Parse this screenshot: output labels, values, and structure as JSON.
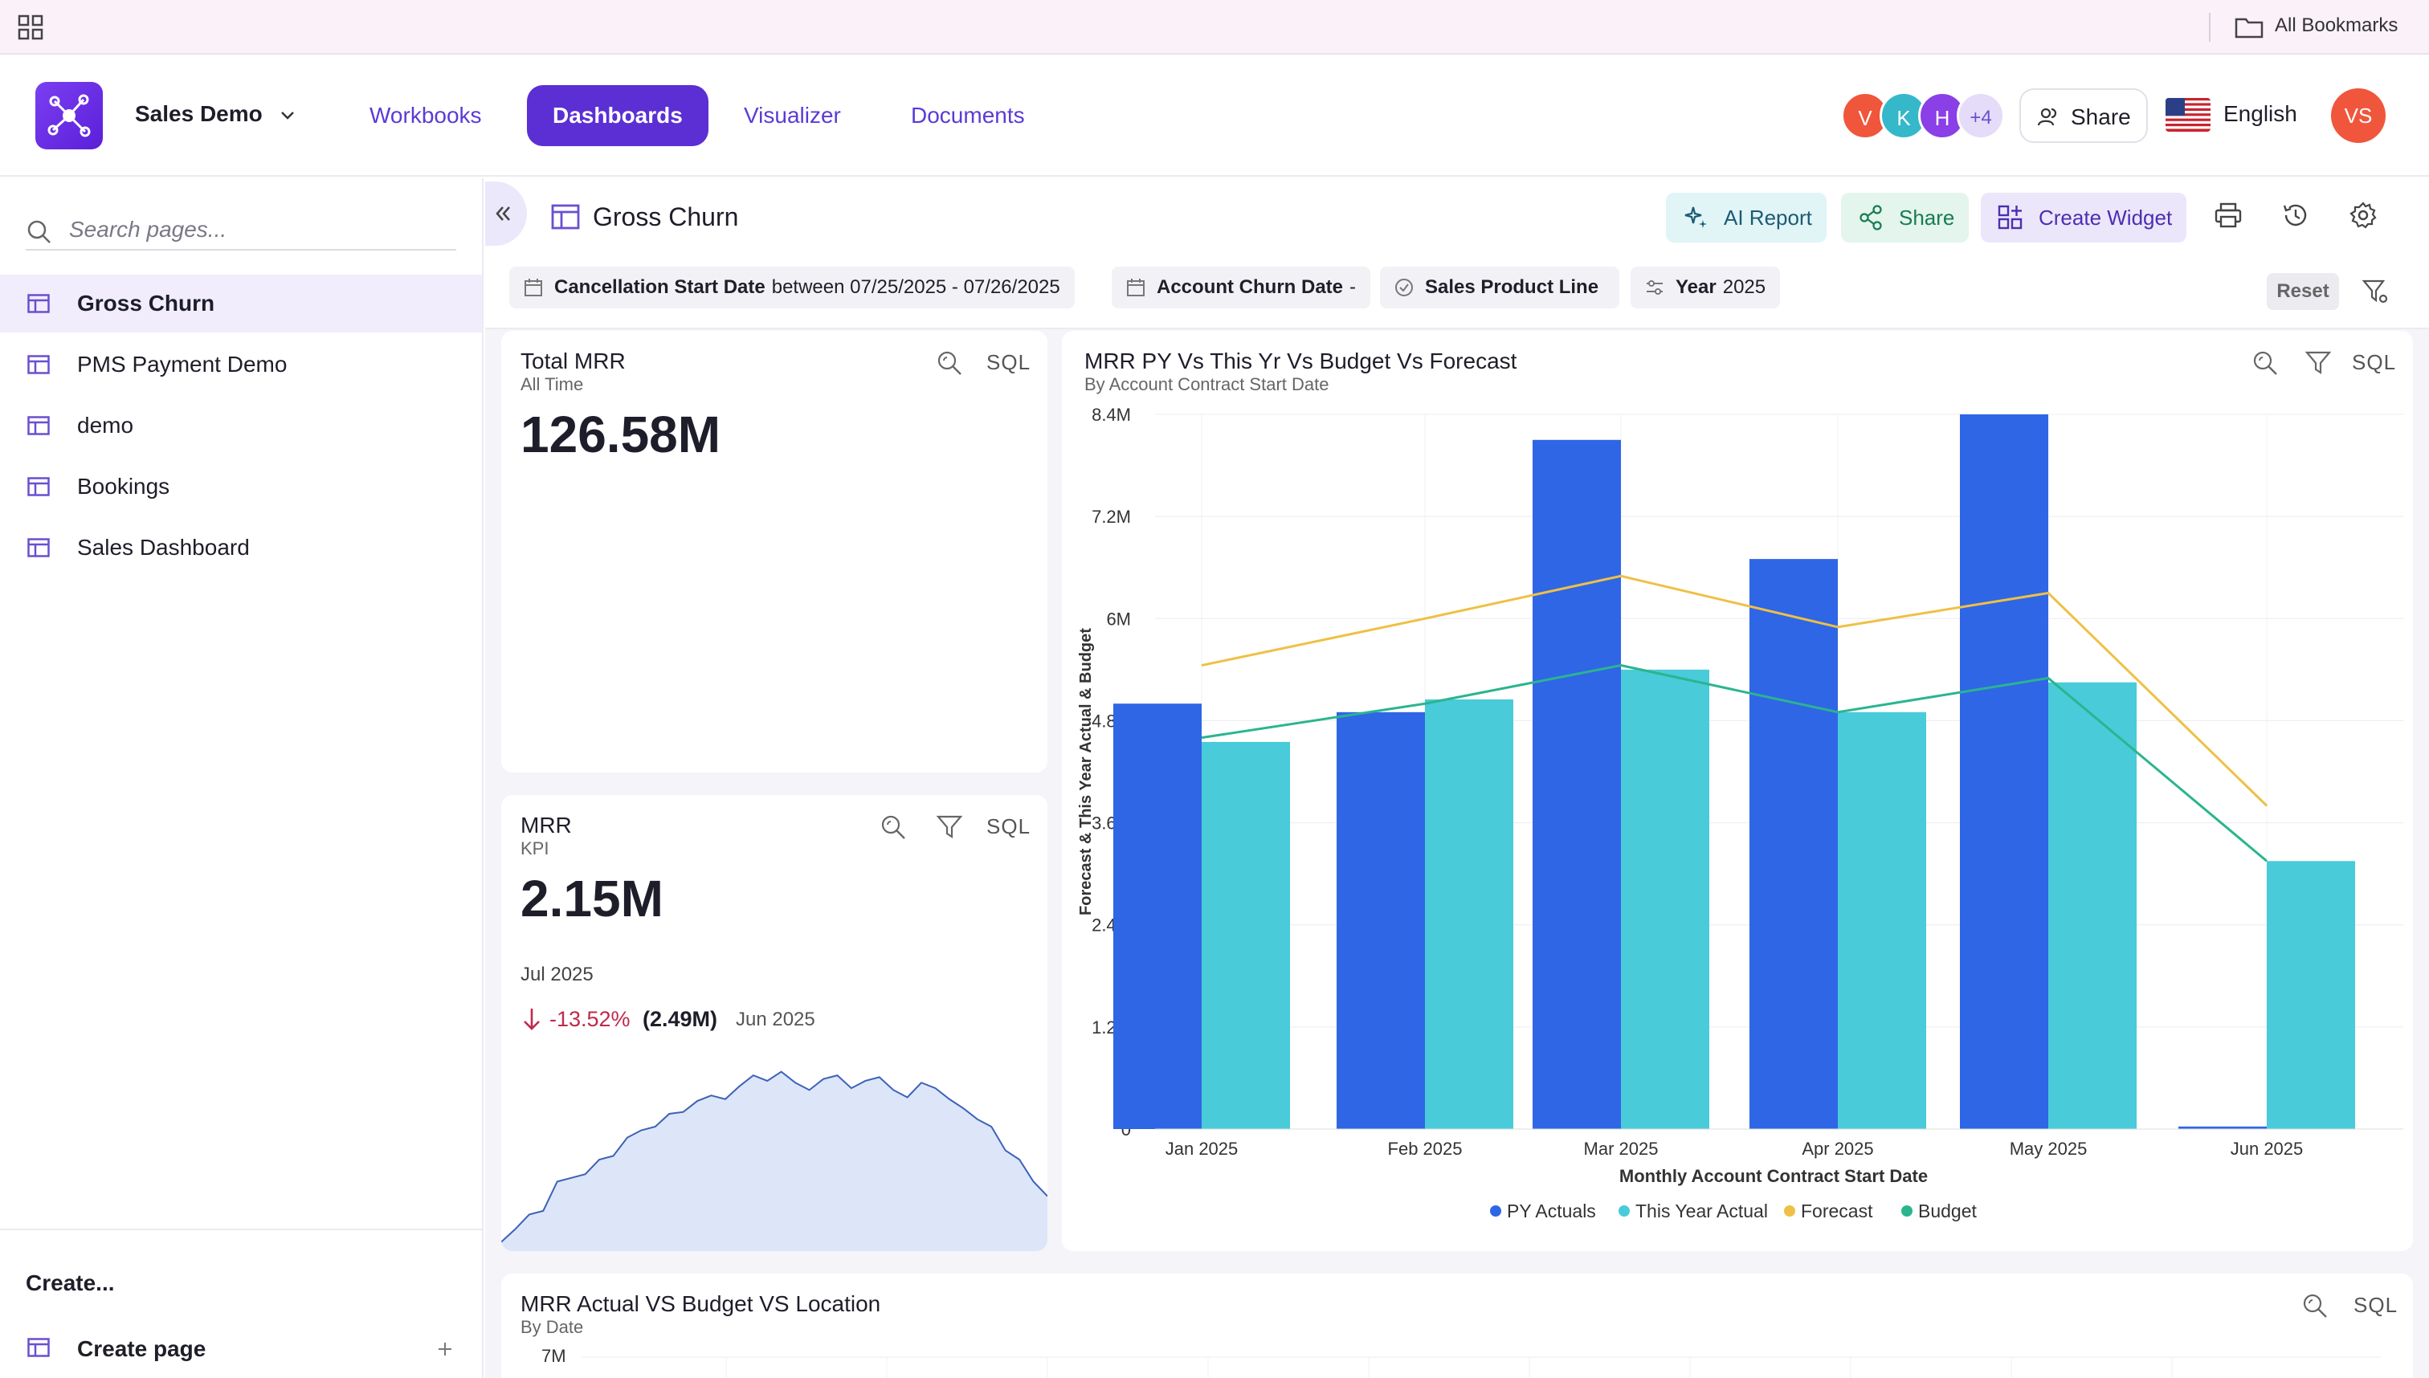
{
  "bookmarks": {
    "label": "All Bookmarks"
  },
  "header": {
    "app_name": "Sales Demo",
    "nav": [
      {
        "label": "Workbooks"
      },
      {
        "label": "Dashboards"
      },
      {
        "label": "Visualizer"
      },
      {
        "label": "Documents"
      }
    ],
    "collaborators": [
      "V",
      "K",
      "H",
      "+4"
    ],
    "share_label": "Share",
    "language": "English",
    "user_initials": "VS"
  },
  "sidebar": {
    "search_placeholder": "Search pages...",
    "items": [
      {
        "label": "Gross Churn"
      },
      {
        "label": "PMS Payment Demo"
      },
      {
        "label": "demo"
      },
      {
        "label": "Bookings"
      },
      {
        "label": "Sales Dashboard"
      }
    ],
    "create_label": "Create...",
    "create_page_label": "Create page"
  },
  "page": {
    "title": "Gross Churn",
    "ai_report": "AI Report",
    "share": "Share",
    "create_widget": "Create Widget"
  },
  "filters": [
    {
      "name": "Cancellation Start Date",
      "value": "between 07/25/2025 - 07/26/2025"
    },
    {
      "name": "Account Churn Date",
      "value": "-"
    },
    {
      "name": "Sales Product Line",
      "value": ""
    },
    {
      "name": "Year",
      "value": "2025"
    }
  ],
  "reset_label": "Reset",
  "widgets": {
    "total_mrr": {
      "title": "Total MRR",
      "subtitle": "All Time",
      "value": "126.58M",
      "sql": "SQL"
    },
    "mrr": {
      "title": "MRR",
      "subtitle": "KPI",
      "value": "2.15M",
      "period": "Jul 2025",
      "change": "-13.52%",
      "prev_value": "(2.49M)",
      "prev_period": "Jun 2025",
      "sql": "SQL",
      "sparkline": [
        0.05,
        0.12,
        0.2,
        0.22,
        0.38,
        0.4,
        0.42,
        0.5,
        0.52,
        0.62,
        0.66,
        0.68,
        0.75,
        0.76,
        0.82,
        0.85,
        0.83,
        0.9,
        0.96,
        0.93,
        0.98,
        0.92,
        0.88,
        0.94,
        0.96,
        0.89,
        0.93,
        0.95,
        0.88,
        0.84,
        0.92,
        0.89,
        0.83,
        0.78,
        0.72,
        0.68,
        0.55,
        0.5,
        0.38,
        0.3
      ]
    },
    "mrr_chart": {
      "title": "MRR PY Vs This Yr Vs Budget Vs Forecast",
      "subtitle": "By Account Contract Start Date",
      "sql": "SQL"
    },
    "mrr_location": {
      "title": "MRR Actual VS Budget VS Location",
      "subtitle": "By Date",
      "y_top": "7M",
      "sql": "SQL"
    }
  },
  "chart_data": {
    "type": "bar",
    "title": "MRR PY Vs This Yr Vs Budget Vs Forecast",
    "subtitle": "By Account Contract Start Date",
    "xlabel": "Monthly Account Contract Start Date",
    "ylabel": "Forecast & This Year Actual & Budget",
    "categories": [
      "Jan 2025",
      "Feb 2025",
      "Mar 2025",
      "Apr 2025",
      "May 2025",
      "Jun 2025"
    ],
    "ylim": [
      0,
      8.4
    ],
    "yticks": [
      "0",
      "1.2M",
      "2.4M",
      "3.6M",
      "4.8M",
      "6M",
      "7.2M",
      "8.4M"
    ],
    "series": [
      {
        "name": "PY Actuals",
        "kind": "bar",
        "color": "#2f66e6",
        "values": [
          5.0,
          4.9,
          8.1,
          6.7,
          8.4,
          0.03
        ]
      },
      {
        "name": "This Year Actual",
        "kind": "bar",
        "color": "#49cbd9",
        "values": [
          4.55,
          5.05,
          5.4,
          4.9,
          5.25,
          3.15
        ]
      },
      {
        "name": "Forecast",
        "kind": "line",
        "color": "#eec045",
        "values": [
          5.45,
          6.0,
          6.5,
          5.9,
          6.3,
          3.8
        ]
      },
      {
        "name": "Budget",
        "kind": "line",
        "color": "#2ab58e",
        "values": [
          4.6,
          5.0,
          5.45,
          4.9,
          5.3,
          3.15
        ]
      }
    ]
  }
}
